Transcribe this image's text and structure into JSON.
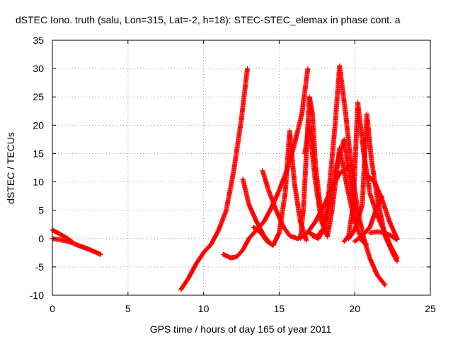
{
  "chart_data": {
    "type": "scatter",
    "title": "dSTEC Iono. truth (salu, Lon=315, Lat=-2, h=18): STEC-STEC_elemax in phase cont. a",
    "xlabel": "GPS time / hours of day 165 of year 2011",
    "ylabel": "dSTEC  / TECUs",
    "xlim": [
      0,
      25
    ],
    "ylim": [
      -10,
      35
    ],
    "xticks": [
      0,
      5,
      10,
      15,
      20,
      25
    ],
    "yticks": [
      -10,
      -5,
      0,
      5,
      10,
      15,
      20,
      25,
      30,
      35
    ],
    "grid": true,
    "marker": "+",
    "color": "#ff0000",
    "series": [
      {
        "x": [
          0.0,
          0.5,
          1.0,
          1.5,
          2.0,
          2.5,
          3.2
        ],
        "y": [
          1.5,
          0.8,
          0.0,
          -1.0,
          -1.5,
          -2.0,
          -2.8
        ]
      },
      {
        "x": [
          0.0,
          0.5,
          1.0,
          1.4
        ],
        "y": [
          0.0,
          -0.2,
          -0.5,
          -0.8
        ]
      },
      {
        "x": [
          8.5,
          9.0,
          9.5,
          10.0,
          10.5,
          11.0,
          11.5,
          12.0,
          12.5,
          12.9
        ],
        "y": [
          -9.0,
          -7.0,
          -4.5,
          -2.5,
          -1.0,
          1.5,
          5.0,
          12.0,
          21.0,
          30.0
        ]
      },
      {
        "x": [
          11.3,
          11.8,
          12.2,
          12.6,
          13.0,
          13.5,
          14.0,
          14.5,
          15.0,
          15.5,
          16.0,
          16.5,
          16.9
        ],
        "y": [
          -2.8,
          -3.4,
          -3.2,
          -2.0,
          0.0,
          1.5,
          3.0,
          5.5,
          8.5,
          12.0,
          16.5,
          22.0,
          30.0
        ]
      },
      {
        "x": [
          12.6,
          13.0,
          13.5,
          14.0,
          14.3
        ],
        "y": [
          10.5,
          6.0,
          3.0,
          0.5,
          -0.5
        ]
      },
      {
        "x": [
          13.3,
          13.8,
          14.2,
          14.6,
          15.0,
          15.4,
          15.7
        ],
        "y": [
          2.0,
          1.0,
          -0.5,
          -1.2,
          1.0,
          8.0,
          19.0
        ]
      },
      {
        "x": [
          15.7,
          16.0,
          16.4,
          16.8
        ],
        "y": [
          19.0,
          10.0,
          3.0,
          -0.3
        ]
      },
      {
        "x": [
          13.9,
          14.3,
          14.8,
          15.3,
          15.7,
          16.2,
          16.7,
          17.0,
          17.4,
          18.0,
          18.5,
          19.0,
          19.5,
          19.8
        ],
        "y": [
          12.0,
          8.5,
          5.0,
          2.0,
          0.5,
          0.0,
          0.5,
          1.5,
          3.0,
          6.0,
          9.0,
          11.5,
          12.5,
          13.0
        ]
      },
      {
        "x": [
          16.4,
          16.6,
          16.8,
          17.0,
          17.2,
          17.4,
          17.7,
          18.0
        ],
        "y": [
          0.0,
          5.0,
          15.0,
          25.0,
          22.0,
          13.0,
          6.0,
          2.0
        ]
      },
      {
        "x": [
          16.7,
          17.0,
          17.4,
          17.8,
          18.2
        ],
        "y": [
          15.0,
          20.0,
          10.0,
          3.0,
          0.3
        ]
      },
      {
        "x": [
          17.0,
          17.5,
          18.0,
          18.4,
          18.8,
          19.3,
          19.7,
          20.1
        ],
        "y": [
          1.0,
          0.3,
          2.0,
          7.0,
          13.0,
          17.5,
          10.0,
          3.0
        ]
      },
      {
        "x": [
          17.2,
          17.6,
          18.0,
          18.3,
          18.7,
          19.0,
          19.4,
          19.8,
          20.2,
          20.6,
          21.0,
          21.5,
          22.0
        ],
        "y": [
          0.5,
          0.0,
          2.0,
          8.5,
          20.0,
          30.5,
          22.0,
          12.0,
          5.0,
          0.0,
          -3.5,
          -6.5,
          -8.2
        ]
      },
      {
        "x": [
          18.2,
          18.5,
          19.0,
          19.5,
          20.0,
          20.5,
          20.8
        ],
        "y": [
          0.5,
          5.0,
          16.0,
          9.0,
          3.0,
          -0.5,
          -1.0
        ]
      },
      {
        "x": [
          19.3,
          19.6,
          19.9,
          20.2,
          20.6,
          21.0,
          21.5,
          22.0,
          22.4,
          22.8
        ],
        "y": [
          -0.5,
          0.5,
          6.0,
          24.0,
          15.0,
          8.0,
          4.0,
          1.0,
          -1.5,
          -3.5
        ]
      },
      {
        "x": [
          19.6,
          20.0,
          20.5,
          20.8,
          21.1,
          21.5,
          22.0,
          22.5,
          22.8
        ],
        "y": [
          0.0,
          1.5,
          6.0,
          22.0,
          14.0,
          7.0,
          0.5,
          -2.5,
          -4.0
        ]
      },
      {
        "x": [
          20.0,
          20.5,
          21.0,
          21.4,
          21.8
        ],
        "y": [
          -0.5,
          0.5,
          2.0,
          5.0,
          7.5
        ]
      },
      {
        "x": [
          21.0,
          21.5,
          22.0,
          22.4,
          22.8
        ],
        "y": [
          1.0,
          1.2,
          1.0,
          0.5,
          -0.2
        ]
      },
      {
        "x": [
          20.9,
          21.3,
          21.8,
          22.3,
          22.8
        ],
        "y": [
          11.0,
          10.0,
          7.0,
          3.0,
          0.0
        ]
      }
    ]
  }
}
